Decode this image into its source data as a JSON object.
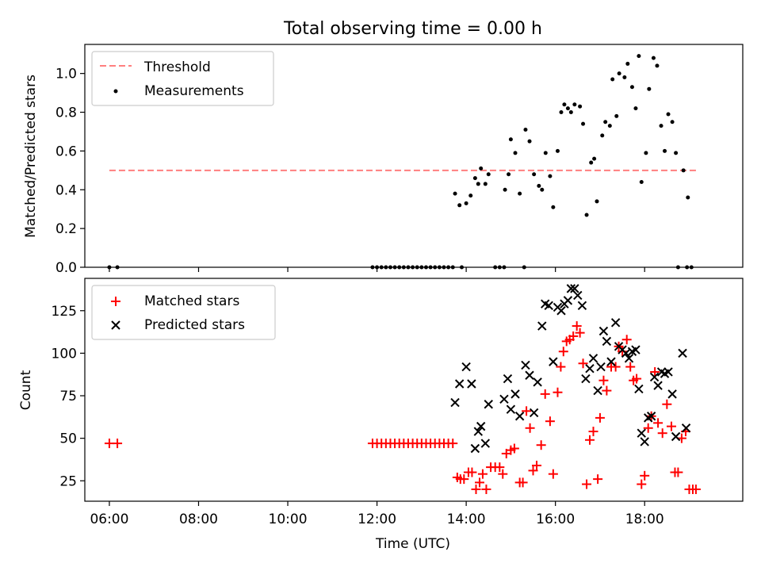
{
  "chart_data": [
    {
      "type": "scatter",
      "title": "Total observing time = 0.00 h",
      "xlabel": "",
      "ylabel": "Matched/Predicted stars",
      "xlim_hours": [
        5.45,
        20.2
      ],
      "ylim": [
        0.0,
        1.15
      ],
      "yticks": [
        0.0,
        0.2,
        0.4,
        0.6,
        0.8,
        1.0
      ],
      "ytick_labels": [
        "0.0",
        "0.2",
        "0.4",
        "0.6",
        "0.8",
        "1.0"
      ],
      "legend_position": "upper-left",
      "threshold": {
        "name": "Threshold",
        "value": 0.5,
        "x_range": [
          6.0,
          19.2
        ],
        "color": "#ff7f7f"
      },
      "series": [
        {
          "name": "Measurements",
          "color": "#000000",
          "points": [
            [
              6.0,
              0
            ],
            [
              6.18,
              0
            ],
            [
              11.9,
              0
            ],
            [
              12.0,
              0
            ],
            [
              12.1,
              0
            ],
            [
              12.2,
              0
            ],
            [
              12.3,
              0
            ],
            [
              12.4,
              0
            ],
            [
              12.5,
              0
            ],
            [
              12.6,
              0
            ],
            [
              12.7,
              0
            ],
            [
              12.8,
              0
            ],
            [
              12.9,
              0
            ],
            [
              13.0,
              0
            ],
            [
              13.1,
              0
            ],
            [
              13.2,
              0
            ],
            [
              13.3,
              0
            ],
            [
              13.4,
              0
            ],
            [
              13.5,
              0
            ],
            [
              13.6,
              0
            ],
            [
              13.7,
              0
            ],
            [
              13.9,
              0
            ],
            [
              14.65,
              0
            ],
            [
              14.75,
              0
            ],
            [
              14.85,
              0
            ],
            [
              15.3,
              0
            ],
            [
              18.75,
              0
            ],
            [
              18.95,
              0
            ],
            [
              19.05,
              0
            ],
            [
              13.75,
              0.38
            ],
            [
              13.85,
              0.32
            ],
            [
              14.0,
              0.33
            ],
            [
              14.1,
              0.37
            ],
            [
              14.2,
              0.46
            ],
            [
              14.27,
              0.43
            ],
            [
              14.33,
              0.51
            ],
            [
              14.43,
              0.43
            ],
            [
              14.5,
              0.48
            ],
            [
              14.87,
              0.4
            ],
            [
              14.95,
              0.48
            ],
            [
              15.0,
              0.66
            ],
            [
              15.1,
              0.59
            ],
            [
              15.2,
              0.38
            ],
            [
              15.33,
              0.71
            ],
            [
              15.42,
              0.65
            ],
            [
              15.52,
              0.48
            ],
            [
              15.63,
              0.42
            ],
            [
              15.7,
              0.4
            ],
            [
              15.78,
              0.59
            ],
            [
              15.88,
              0.47
            ],
            [
              15.95,
              0.31
            ],
            [
              16.05,
              0.6
            ],
            [
              16.13,
              0.8
            ],
            [
              16.2,
              0.84
            ],
            [
              16.28,
              0.82
            ],
            [
              16.35,
              0.8
            ],
            [
              16.43,
              0.84
            ],
            [
              16.55,
              0.83
            ],
            [
              16.62,
              0.74
            ],
            [
              16.7,
              0.27
            ],
            [
              16.8,
              0.54
            ],
            [
              16.87,
              0.56
            ],
            [
              16.93,
              0.34
            ],
            [
              17.05,
              0.68
            ],
            [
              17.12,
              0.75
            ],
            [
              17.22,
              0.73
            ],
            [
              17.28,
              0.97
            ],
            [
              17.37,
              0.78
            ],
            [
              17.43,
              1.0
            ],
            [
              17.55,
              0.98
            ],
            [
              17.62,
              1.05
            ],
            [
              17.72,
              0.93
            ],
            [
              17.8,
              0.82
            ],
            [
              17.87,
              1.09
            ],
            [
              17.93,
              0.44
            ],
            [
              18.03,
              0.59
            ],
            [
              18.1,
              0.92
            ],
            [
              18.2,
              1.08
            ],
            [
              18.28,
              1.04
            ],
            [
              18.37,
              0.73
            ],
            [
              18.45,
              0.6
            ],
            [
              18.53,
              0.79
            ],
            [
              18.62,
              0.75
            ],
            [
              18.7,
              0.59
            ],
            [
              18.87,
              0.5
            ],
            [
              18.97,
              0.36
            ]
          ]
        }
      ]
    },
    {
      "type": "scatter",
      "title": "",
      "xlabel": "Time (UTC)",
      "ylabel": "Count",
      "xlim_hours": [
        5.45,
        20.2
      ],
      "ylim": [
        13,
        144
      ],
      "yticks": [
        25,
        50,
        75,
        100,
        125
      ],
      "ytick_labels": [
        "25",
        "50",
        "75",
        "100",
        "125"
      ],
      "xticks_hours": [
        6,
        8,
        10,
        12,
        14,
        16,
        18
      ],
      "xtick_labels": [
        "06:00",
        "08:00",
        "10:00",
        "12:00",
        "14:00",
        "16:00",
        "18:00"
      ],
      "legend_position": "upper-left",
      "series": [
        {
          "name": "Matched stars",
          "color": "#ff0000",
          "marker": "plus",
          "points": [
            [
              6.0,
              47
            ],
            [
              6.18,
              47
            ],
            [
              11.9,
              47
            ],
            [
              12.0,
              47
            ],
            [
              12.1,
              47
            ],
            [
              12.2,
              47
            ],
            [
              12.3,
              47
            ],
            [
              12.4,
              47
            ],
            [
              12.5,
              47
            ],
            [
              12.6,
              47
            ],
            [
              12.7,
              47
            ],
            [
              12.8,
              47
            ],
            [
              12.9,
              47
            ],
            [
              13.0,
              47
            ],
            [
              13.1,
              47
            ],
            [
              13.2,
              47
            ],
            [
              13.3,
              47
            ],
            [
              13.4,
              47
            ],
            [
              13.5,
              47
            ],
            [
              13.6,
              47
            ],
            [
              13.7,
              47
            ],
            [
              13.8,
              27
            ],
            [
              13.87,
              26
            ],
            [
              13.95,
              26
            ],
            [
              14.05,
              30
            ],
            [
              14.13,
              30
            ],
            [
              14.22,
              20
            ],
            [
              14.3,
              24
            ],
            [
              14.37,
              29
            ],
            [
              14.45,
              20
            ],
            [
              14.55,
              33
            ],
            [
              14.65,
              33
            ],
            [
              14.75,
              33
            ],
            [
              14.82,
              29
            ],
            [
              14.9,
              41
            ],
            [
              15.0,
              43
            ],
            [
              15.08,
              44
            ],
            [
              15.2,
              24
            ],
            [
              15.27,
              24
            ],
            [
              15.35,
              66
            ],
            [
              15.43,
              56
            ],
            [
              15.5,
              31
            ],
            [
              15.58,
              34
            ],
            [
              15.68,
              46
            ],
            [
              15.77,
              76
            ],
            [
              15.88,
              60
            ],
            [
              15.95,
              29
            ],
            [
              16.05,
              77
            ],
            [
              16.12,
              92
            ],
            [
              16.18,
              101
            ],
            [
              16.25,
              107
            ],
            [
              16.32,
              108
            ],
            [
              16.4,
              110
            ],
            [
              16.48,
              116
            ],
            [
              16.55,
              112
            ],
            [
              16.62,
              94
            ],
            [
              16.7,
              23
            ],
            [
              16.77,
              49
            ],
            [
              16.85,
              54
            ],
            [
              16.95,
              26
            ],
            [
              17.0,
              62
            ],
            [
              17.08,
              84
            ],
            [
              17.15,
              78
            ],
            [
              17.25,
              92
            ],
            [
              17.35,
              92
            ],
            [
              17.42,
              104
            ],
            [
              17.5,
              101
            ],
            [
              17.6,
              108
            ],
            [
              17.68,
              92
            ],
            [
              17.75,
              84
            ],
            [
              17.82,
              85
            ],
            [
              17.93,
              23
            ],
            [
              18.0,
              28
            ],
            [
              18.08,
              56
            ],
            [
              18.15,
              63
            ],
            [
              18.23,
              89
            ],
            [
              18.3,
              59
            ],
            [
              18.4,
              53
            ],
            [
              18.5,
              70
            ],
            [
              18.6,
              57
            ],
            [
              18.68,
              30
            ],
            [
              18.75,
              30
            ],
            [
              18.83,
              50
            ],
            [
              18.92,
              54
            ],
            [
              19.0,
              20
            ],
            [
              19.08,
              20
            ],
            [
              19.15,
              20
            ]
          ]
        },
        {
          "name": "Predicted stars",
          "color": "#000000",
          "marker": "x",
          "points": [
            [
              13.75,
              71
            ],
            [
              13.85,
              82
            ],
            [
              14.0,
              92
            ],
            [
              14.12,
              82
            ],
            [
              14.2,
              44
            ],
            [
              14.27,
              54
            ],
            [
              14.33,
              57
            ],
            [
              14.43,
              47
            ],
            [
              14.5,
              70
            ],
            [
              14.85,
              73
            ],
            [
              14.93,
              85
            ],
            [
              15.0,
              67
            ],
            [
              15.1,
              76
            ],
            [
              15.2,
              63
            ],
            [
              15.33,
              93
            ],
            [
              15.42,
              87
            ],
            [
              15.52,
              65
            ],
            [
              15.6,
              83
            ],
            [
              15.7,
              116
            ],
            [
              15.77,
              129
            ],
            [
              15.85,
              128
            ],
            [
              15.95,
              95
            ],
            [
              16.05,
              127
            ],
            [
              16.13,
              125
            ],
            [
              16.2,
              129
            ],
            [
              16.28,
              131
            ],
            [
              16.35,
              138
            ],
            [
              16.43,
              138
            ],
            [
              16.5,
              134
            ],
            [
              16.6,
              128
            ],
            [
              16.68,
              85
            ],
            [
              16.77,
              91
            ],
            [
              16.85,
              97
            ],
            [
              16.95,
              78
            ],
            [
              17.02,
              92
            ],
            [
              17.08,
              113
            ],
            [
              17.15,
              107
            ],
            [
              17.25,
              95
            ],
            [
              17.35,
              118
            ],
            [
              17.42,
              104
            ],
            [
              17.5,
              102
            ],
            [
              17.58,
              100
            ],
            [
              17.65,
              97
            ],
            [
              17.72,
              101
            ],
            [
              17.8,
              102
            ],
            [
              17.87,
              79
            ],
            [
              17.93,
              53
            ],
            [
              18.0,
              48
            ],
            [
              18.08,
              62
            ],
            [
              18.15,
              63
            ],
            [
              18.22,
              86
            ],
            [
              18.3,
              81
            ],
            [
              18.38,
              89
            ],
            [
              18.45,
              88
            ],
            [
              18.53,
              89
            ],
            [
              18.62,
              76
            ],
            [
              18.7,
              51
            ],
            [
              18.85,
              100
            ],
            [
              18.93,
              56
            ]
          ]
        }
      ]
    }
  ]
}
